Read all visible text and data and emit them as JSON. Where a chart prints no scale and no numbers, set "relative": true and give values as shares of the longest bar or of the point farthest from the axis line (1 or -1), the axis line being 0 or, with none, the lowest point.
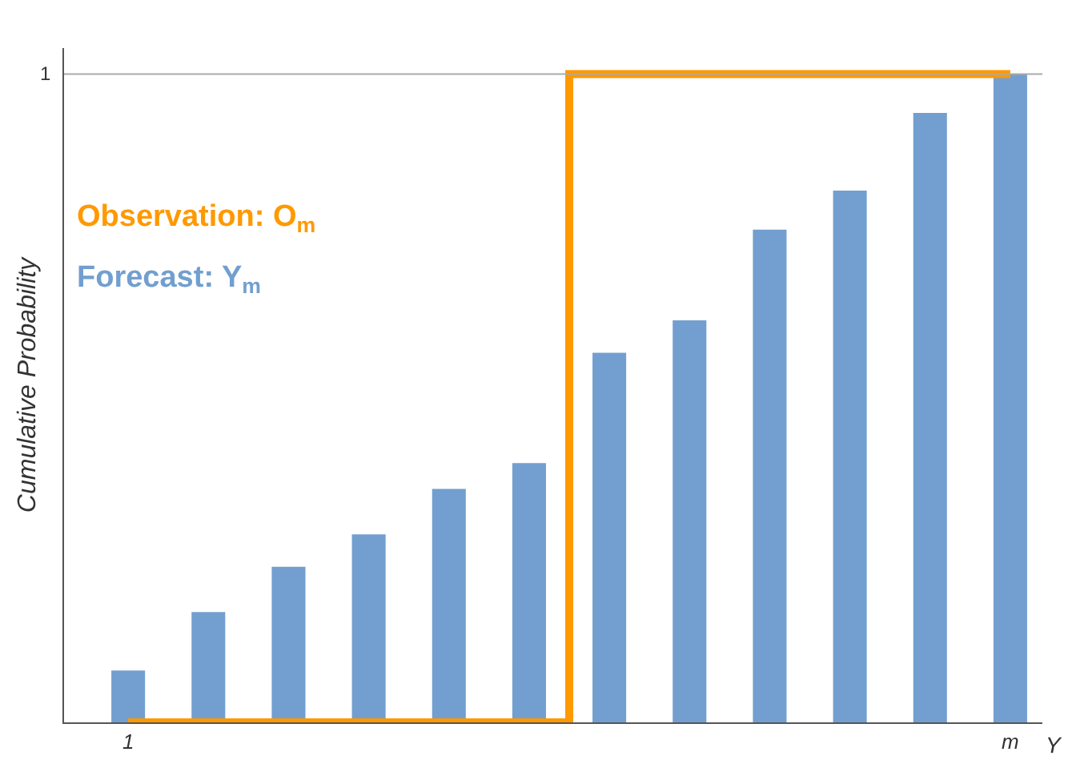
{
  "chart_data": {
    "type": "bar",
    "relative": true,
    "categories": [
      "1",
      null,
      null,
      null,
      null,
      null,
      null,
      null,
      null,
      null,
      null,
      "m"
    ],
    "xlabel": "Y",
    "ylabel": "Cumulative Probability",
    "series": [
      {
        "name": "Observation: O$_{m}$",
        "type": "step",
        "color": "#ff9900",
        "values": [
          0,
          0,
          0,
          0,
          0,
          0,
          1,
          1,
          1,
          1,
          1,
          1
        ]
      },
      {
        "name": "Forecast: Y$_{m}$",
        "color": "#729fcf",
        "values": [
          0.08,
          0.17,
          0.24,
          0.29,
          0.36,
          0.4,
          0.57,
          0.62,
          0.76,
          0.82,
          0.94,
          1
        ]
      }
    ],
    "ref_lines": [
      {
        "axis": "y",
        "value": 1,
        "label": "1",
        "color": "#aaaaaa"
      }
    ],
    "legend": "top left",
    "grid": false
  }
}
